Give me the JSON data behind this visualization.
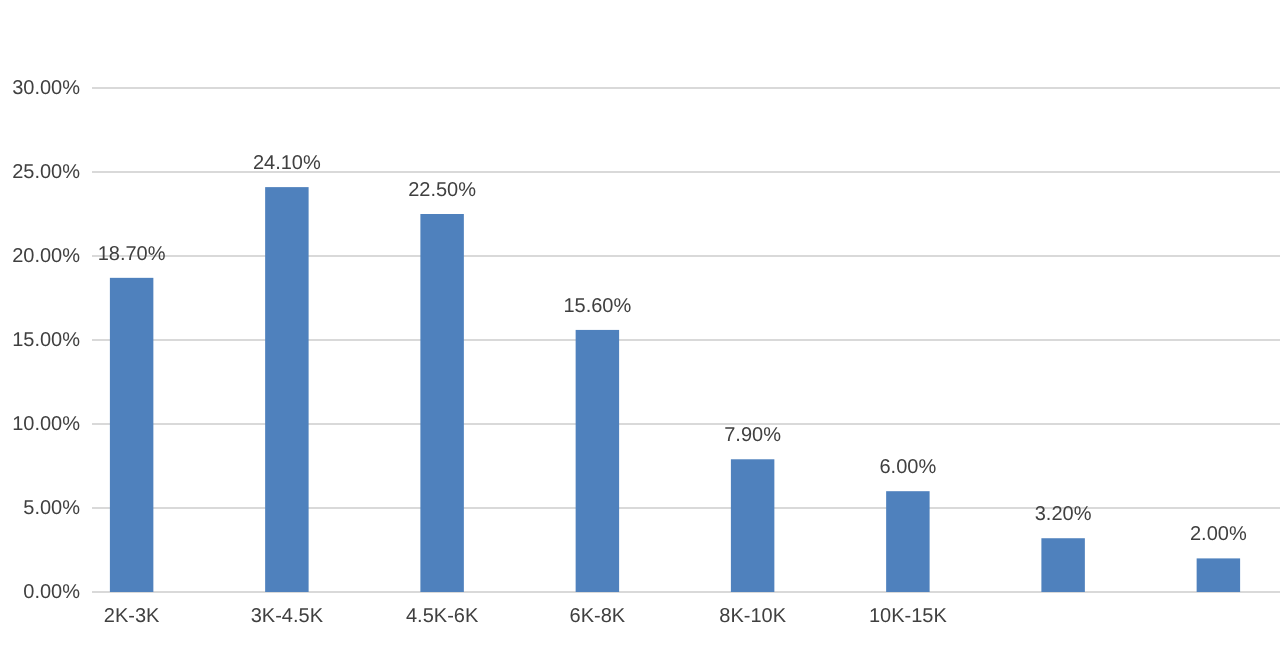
{
  "chart_data": {
    "type": "bar",
    "categories": [
      "2K-3K",
      "3K-4.5K",
      "4.5K-6K",
      "6K-8K",
      "8K-10K",
      "10K-15K",
      null,
      null
    ],
    "values": [
      18.7,
      24.1,
      22.5,
      15.6,
      7.9,
      6.0,
      3.2,
      2.0
    ],
    "value_labels": [
      "18.70%",
      "24.10%",
      "22.50%",
      "15.60%",
      "7.90%",
      "6.00%",
      "3.20%",
      "2.00%"
    ],
    "color": "#4f81bd",
    "ylim": [
      0,
      30
    ],
    "yticks": [
      {
        "value": 0,
        "label": "0.00%"
      },
      {
        "value": 5,
        "label": "5.00%"
      },
      {
        "value": 10,
        "label": "10.00%"
      },
      {
        "value": 15,
        "label": "15.00%"
      },
      {
        "value": 20,
        "label": "20.00%"
      },
      {
        "value": 25,
        "label": "25.00%"
      },
      {
        "value": 30,
        "label": "30.00%"
      }
    ],
    "grid": "y"
  }
}
